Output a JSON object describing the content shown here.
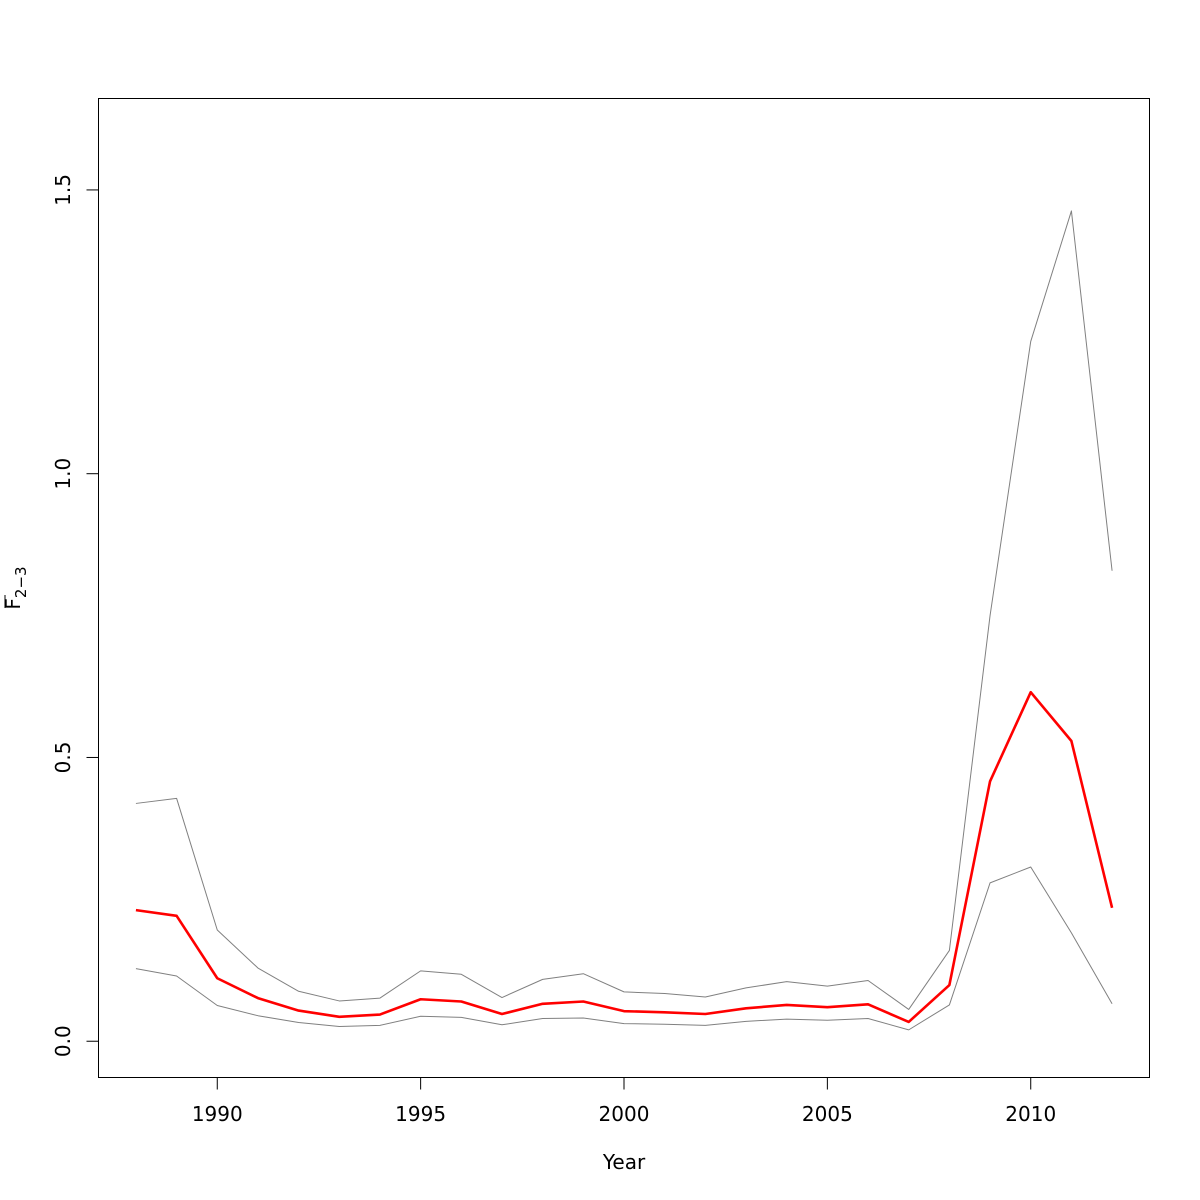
{
  "chart_data": {
    "type": "line",
    "title": "",
    "xlabel": "Year",
    "ylabel_main": "F",
    "ylabel_sub": "2−3",
    "xlim": [
      1987.08,
      2012.92
    ],
    "ylim": [
      -0.0639,
      1.6611
    ],
    "x_ticks": [
      1990,
      1995,
      2000,
      2005,
      2010
    ],
    "y_ticks": [
      0.0,
      0.5,
      1.0,
      1.5
    ],
    "x_tick_labels": [
      "1990",
      "1995",
      "2000",
      "2005",
      "2010"
    ],
    "y_tick_labels": [
      "0.0",
      "0.5",
      "1.0",
      "1.5"
    ],
    "x": [
      1988,
      1989,
      1990,
      1991,
      1992,
      1993,
      1994,
      1995,
      1996,
      1997,
      1998,
      1999,
      2000,
      2001,
      2002,
      2003,
      2004,
      2005,
      2006,
      2007,
      2008,
      2009,
      2010,
      2011,
      2012
    ],
    "series": [
      {
        "color": "#ff0000",
        "values": [
          0.231,
          0.221,
          0.111,
          0.076,
          0.054,
          0.043,
          0.047,
          0.074,
          0.07,
          0.048,
          0.066,
          0.07,
          0.053,
          0.051,
          0.048,
          0.058,
          0.064,
          0.06,
          0.065,
          0.034,
          0.099,
          0.458,
          0.615,
          0.529,
          0.235
        ]
      },
      {
        "color": "#808080",
        "values": [
          0.419,
          0.428,
          0.196,
          0.129,
          0.088,
          0.071,
          0.076,
          0.124,
          0.118,
          0.077,
          0.109,
          0.119,
          0.087,
          0.084,
          0.078,
          0.094,
          0.105,
          0.097,
          0.107,
          0.056,
          0.16,
          0.75,
          1.233,
          1.463,
          0.829
        ]
      },
      {
        "color": "#808080",
        "values": [
          0.128,
          0.115,
          0.063,
          0.045,
          0.033,
          0.026,
          0.028,
          0.044,
          0.042,
          0.029,
          0.04,
          0.041,
          0.031,
          0.03,
          0.028,
          0.035,
          0.039,
          0.037,
          0.04,
          0.02,
          0.064,
          0.279,
          0.307,
          0.191,
          0.066
        ]
      }
    ]
  }
}
